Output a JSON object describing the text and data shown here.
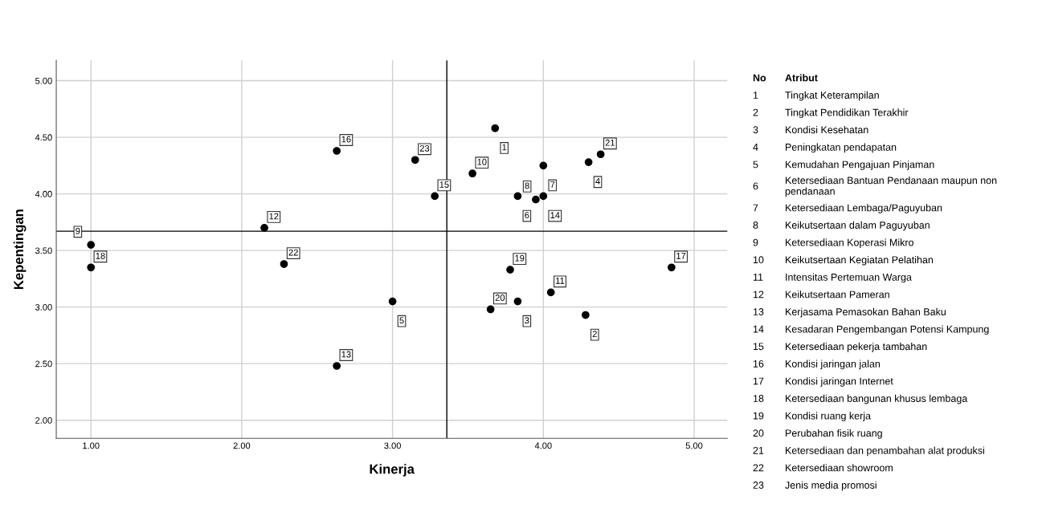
{
  "chart_data": {
    "type": "scatter",
    "xlabel": "Kinerja",
    "ylabel": "Kepentingan",
    "value_labels": [
      "1",
      "2",
      "3",
      "4",
      "5",
      "6",
      "7",
      "8",
      "9",
      "10",
      "11",
      "12",
      "13",
      "14",
      "15",
      "16",
      "17",
      "18",
      "19",
      "20",
      "21",
      "22",
      "23"
    ],
    "x": [
      3.68,
      4.28,
      3.83,
      4.3,
      3.0,
      3.83,
      4.0,
      3.95,
      1.0,
      3.53,
      4.05,
      2.15,
      2.63,
      4.0,
      3.28,
      2.63,
      4.85,
      1.0,
      3.78,
      3.65,
      4.38,
      2.28,
      3.15
    ],
    "series": [
      {
        "color": "#000000",
        "values": [
          4.58,
          2.93,
          3.05,
          4.28,
          3.05,
          3.98,
          4.25,
          3.95,
          3.55,
          4.18,
          3.13,
          3.7,
          2.48,
          3.98,
          3.98,
          4.38,
          3.35,
          3.35,
          3.33,
          2.98,
          4.35,
          3.38,
          4.3
        ]
      }
    ],
    "marker": "circle",
    "grid": true,
    "legend": false,
    "xlim": [
      0.77,
      5.22
    ],
    "ylim": [
      1.84,
      5.18
    ],
    "xticks": [
      {
        "value": 1,
        "label": "1.00"
      },
      {
        "value": 2,
        "label": "2.00"
      },
      {
        "value": 3,
        "label": "3.00"
      },
      {
        "value": 4,
        "label": "4.00"
      },
      {
        "value": 5,
        "label": "5.00"
      }
    ],
    "yticks": [
      {
        "value": 2,
        "label": "2.00"
      },
      {
        "value": 2.5,
        "label": "2.50"
      },
      {
        "value": 3,
        "label": "3.00"
      },
      {
        "value": 3.5,
        "label": "3.50"
      },
      {
        "value": 4,
        "label": "4.00"
      },
      {
        "value": 4.5,
        "label": "4.50"
      },
      {
        "value": 5,
        "label": "5.00"
      }
    ],
    "ref_lines": [
      {
        "axis": "x",
        "value": 3.36,
        "color": "#000000"
      },
      {
        "axis": "y",
        "value": 3.67,
        "color": "#000000"
      }
    ],
    "annotations": [
      "No",
      "Atribut",
      "Tingkat Keterampilan",
      "Tingkat Pendidikan Terakhir",
      "Kondisi Kesehatan",
      "Peningkatan pendapatan",
      "Kemudahan Pengajuan Pinjaman",
      "Ketersediaan Bantuan Pendanaan maupun non pendanaan",
      "Ketersediaan Lembaga/Paguyuban",
      "Keikutsertaan dalam Paguyuban",
      "Ketersediaan Koperasi Mikro",
      "Keikutsertaan Kegiatan Pelatihan",
      "Intensitas Pertemuan Warga",
      "Keikutsertaan Pameran",
      "Kerjasama Pemasokan Bahan Baku",
      "Kesadaran Pengembangan Potensi Kampung",
      "Ketersediaan pekerja tambahan",
      "Kondisi jaringan jalan",
      "Kondisi jaringan Internet",
      "Ketersediaan bangunan khusus lembaga",
      "Kondisi ruang kerja",
      "Perubahan fisik ruang",
      "Ketersediaan dan penambahan alat produksi",
      "Ketersediaan showroom",
      "Jenis media promosi"
    ]
  }
}
